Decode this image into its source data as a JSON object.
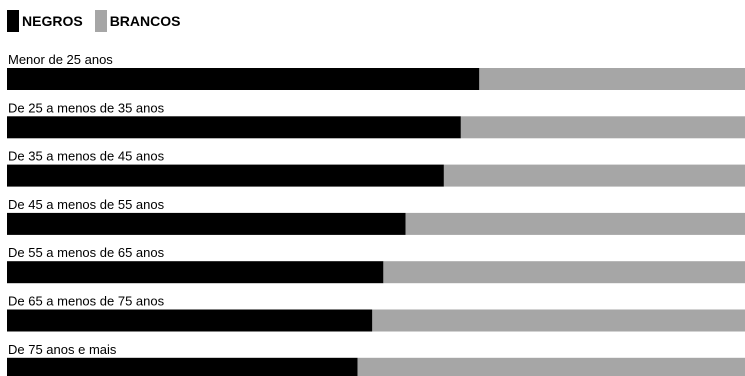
{
  "chart_data": {
    "type": "bar",
    "stacked": true,
    "orientation": "horizontal",
    "categories": [
      "Menor de 25 anos",
      "De 25 a menos de 35 anos",
      "De 35 a menos de 45 anos",
      "De 45 a menos de 55 anos",
      "De 55 a menos de 65 anos",
      "De 65 a menos de 75 anos",
      "De 75 anos e mais"
    ],
    "series": [
      {
        "name": "NEGROS",
        "color": "#000000",
        "values": [
          64,
          61.5,
          59.2,
          54,
          51,
          49.5,
          47.5
        ]
      },
      {
        "name": "BRANCOS",
        "color": "#a6a6a6",
        "values": [
          36,
          38.5,
          40.8,
          46,
          49,
          50.5,
          52.5
        ]
      }
    ],
    "xlim": [
      0,
      100
    ],
    "legend_position": "top-left",
    "grid": false
  }
}
